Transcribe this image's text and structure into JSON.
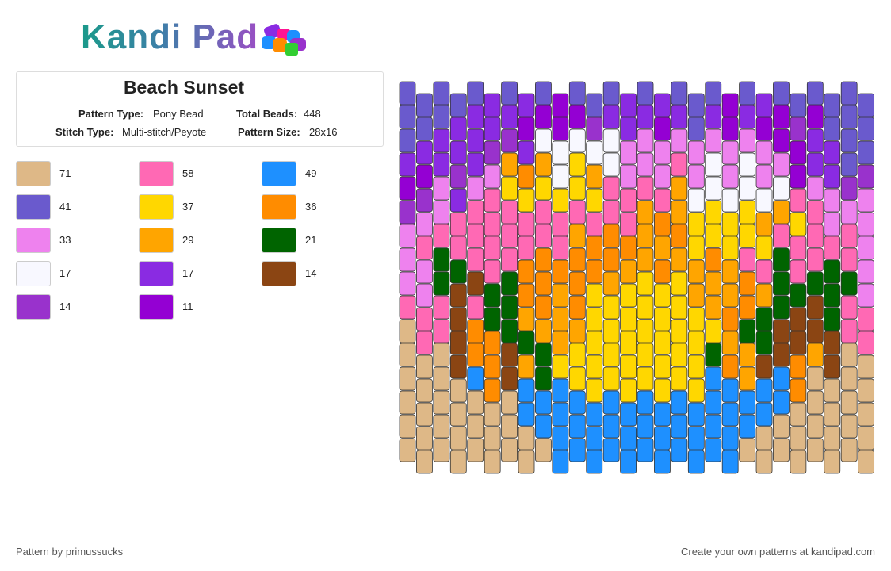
{
  "header": {
    "logo": "Kandi Pad"
  },
  "pattern": {
    "title": "Beach Sunset",
    "fields": [
      {
        "label": "Pattern Type:",
        "value": "Pony Bead"
      },
      {
        "label": "Total Beads:",
        "value": 448
      },
      {
        "label": "Stitch Type:",
        "value": "Multi-stitch/Peyote"
      },
      {
        "label": "Pattern Size:",
        "value": "28x16"
      }
    ]
  },
  "legend": [
    {
      "color": "#deb887",
      "count": 71
    },
    {
      "color": "#ff69b4",
      "count": 58
    },
    {
      "color": "#1e90ff",
      "count": 49
    },
    {
      "color": "#6a5acd",
      "count": 41
    },
    {
      "color": "#ffd700",
      "count": 37
    },
    {
      "color": "#ff8c00",
      "count": 36
    },
    {
      "color": "#ee82ee",
      "count": 33
    },
    {
      "color": "#ffa500",
      "count": 29
    },
    {
      "color": "#006400",
      "count": 21
    },
    {
      "color": "#f8f8ff",
      "count": 17
    },
    {
      "color": "#8a2be2",
      "count": 17
    },
    {
      "color": "#8b4513",
      "count": 14
    },
    {
      "color": "#9932cc",
      "count": 14
    },
    {
      "color": "#9400d3",
      "count": 11
    }
  ],
  "footer": {
    "author": "Pattern by primussucks",
    "cta": "Create your own patterns at kandipad.com"
  }
}
